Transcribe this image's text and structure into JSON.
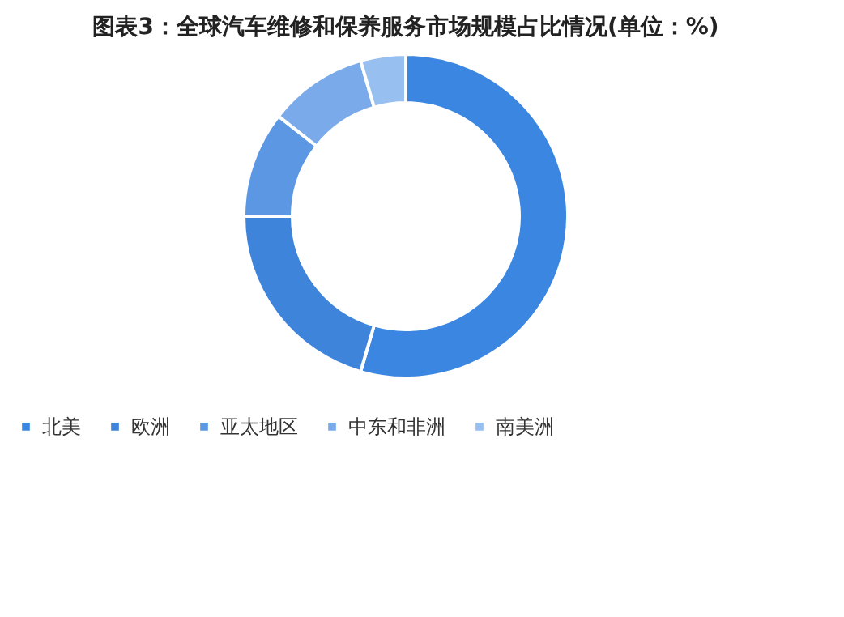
{
  "chart_data": {
    "type": "donut",
    "title": "图表3：全球汽车维修和保养服务市场规模占比情况(单位：%)",
    "categories": [
      "北美",
      "欧洲",
      "亚太地区",
      "中东和非洲",
      "南美洲"
    ],
    "values": [
      54.5,
      20.5,
      10.6,
      9.9,
      4.5
    ],
    "colors": [
      "#3a86e0",
      "#3f84db",
      "#5c97e4",
      "#7aaaea",
      "#97bff0"
    ],
    "legend": "bottom"
  }
}
